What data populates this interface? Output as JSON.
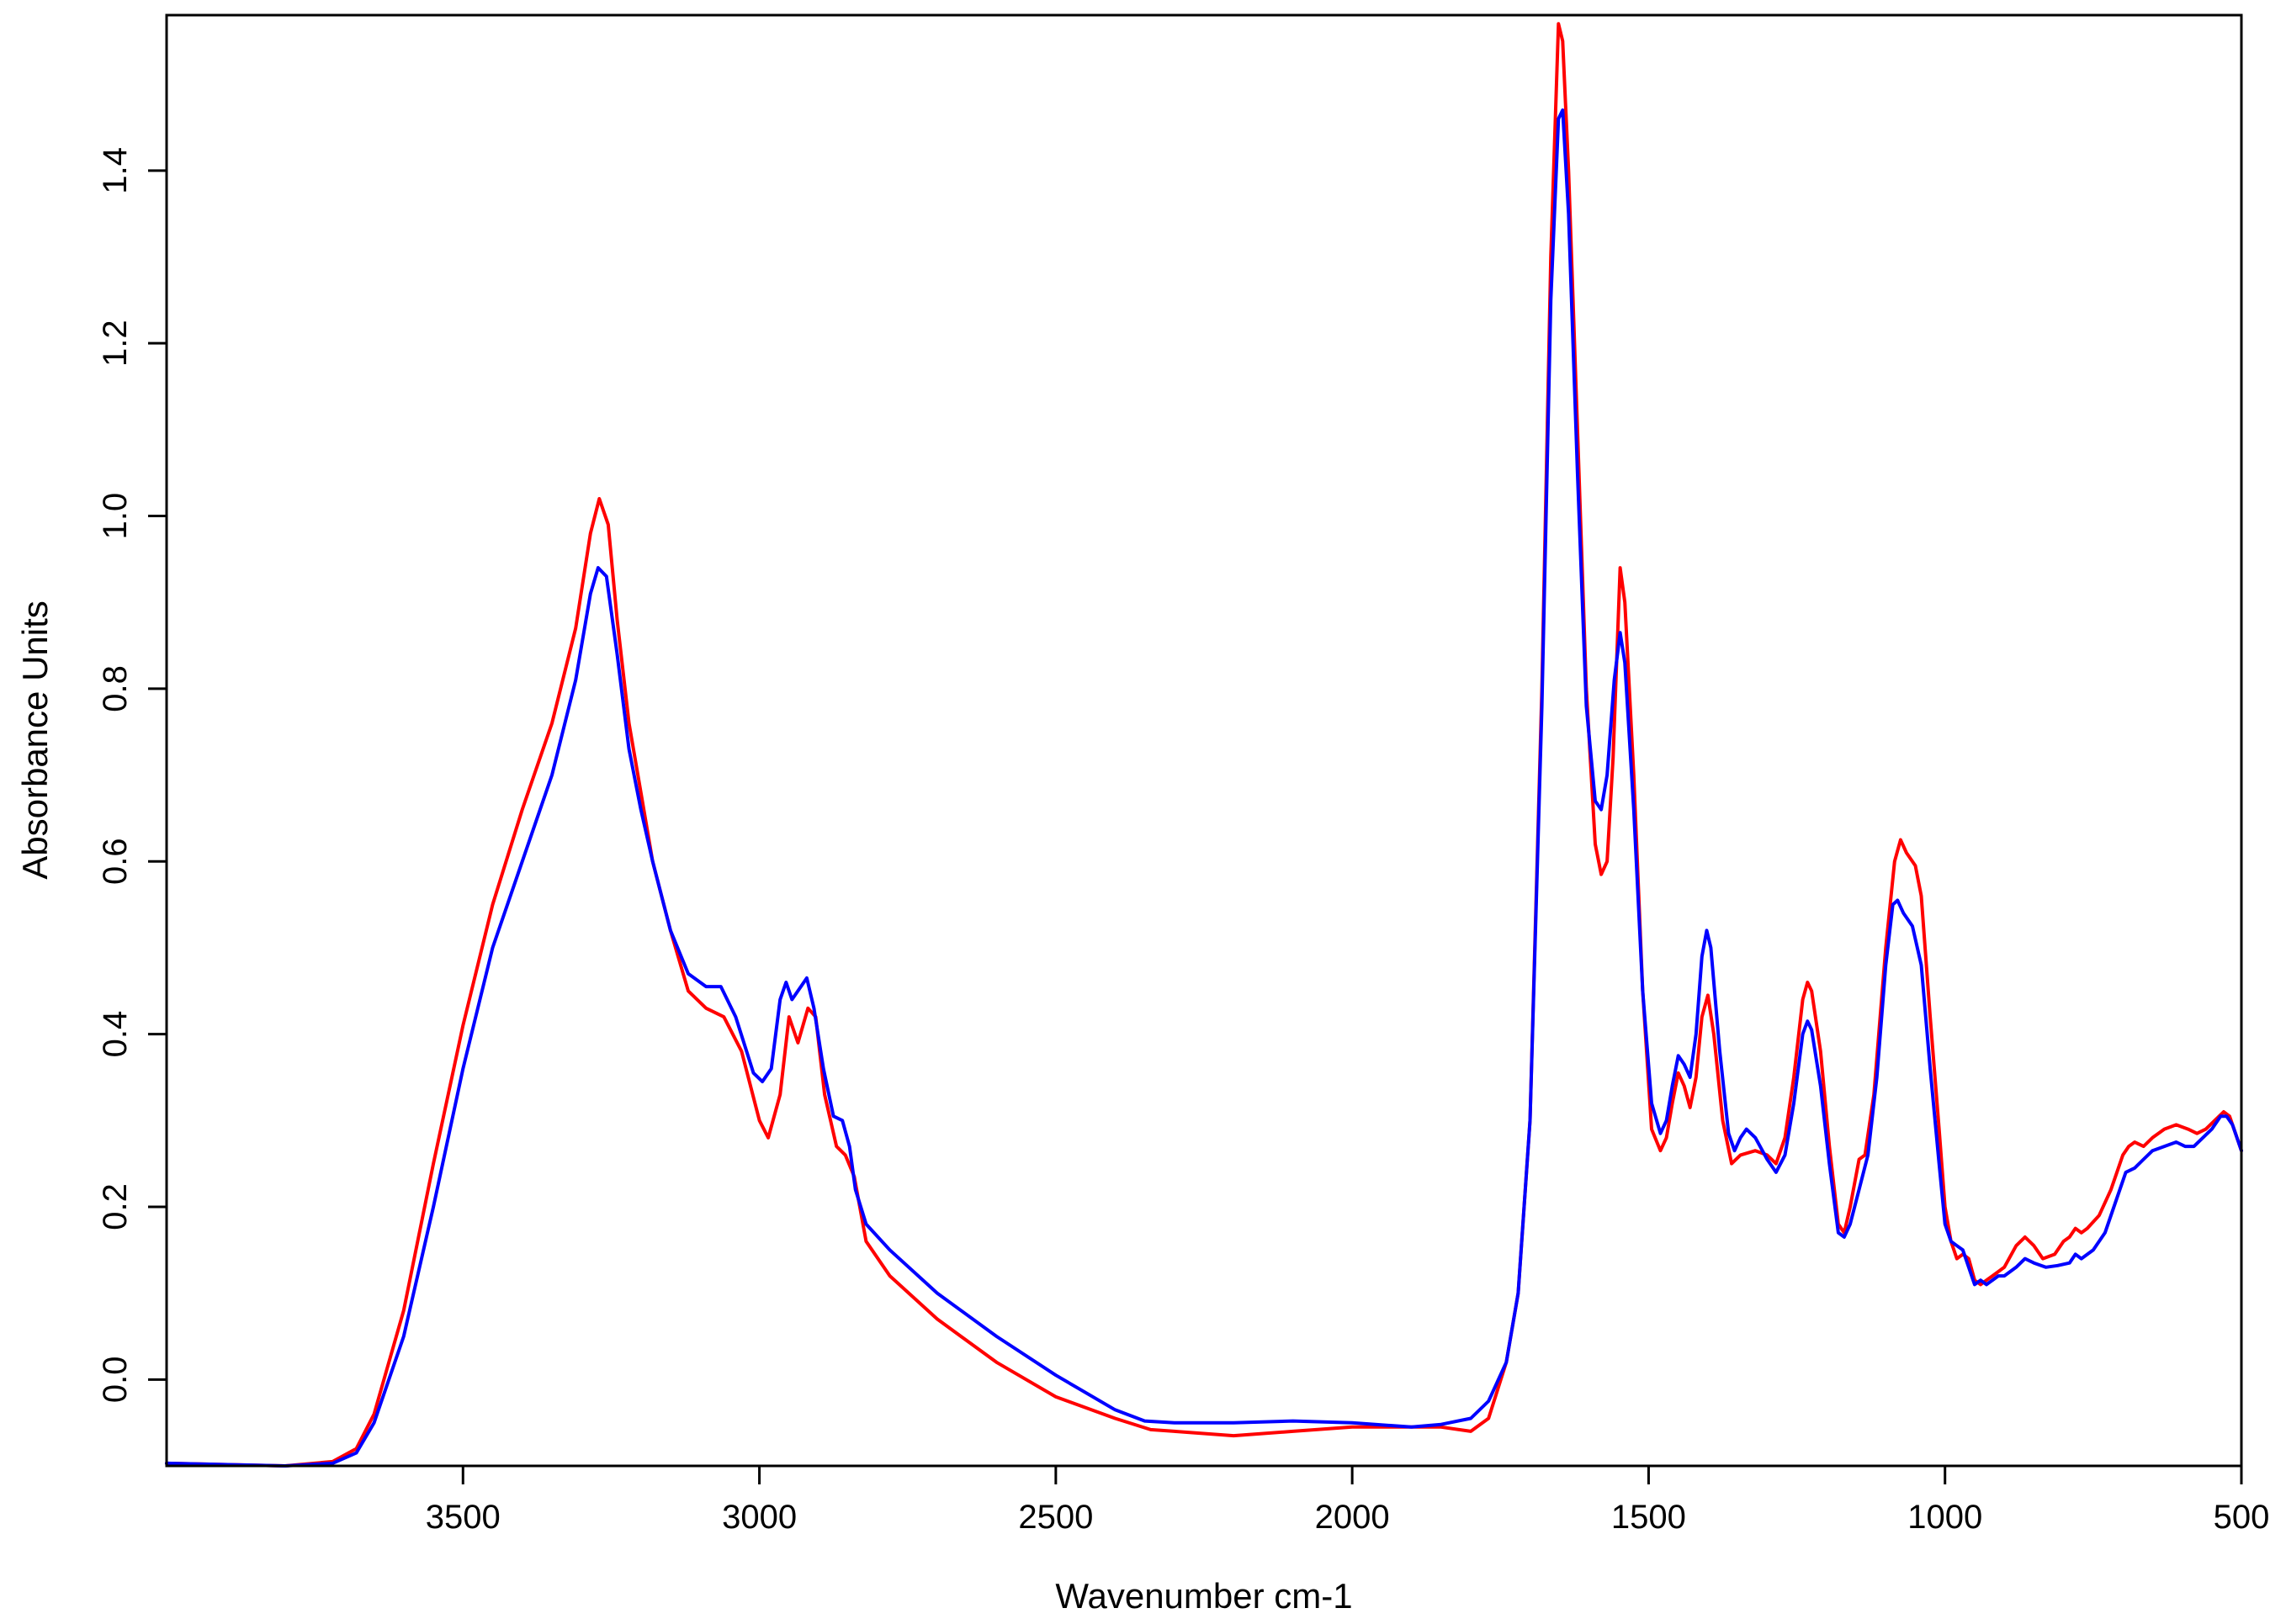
{
  "chart_data": {
    "type": "line",
    "title": "",
    "xlabel": "Wavenumber cm-1",
    "ylabel": "Absorbance Units",
    "xlim": [
      4000,
      500
    ],
    "ylim": [
      -0.1,
      1.58
    ],
    "x_reversed": true,
    "grid": false,
    "legend": "none",
    "x_ticks": [
      3500,
      3000,
      2500,
      2000,
      1500,
      1000,
      500
    ],
    "x_tick_labels": [
      "3500",
      "3000",
      "2500",
      "2000",
      "1500",
      "1000",
      "500"
    ],
    "y_ticks": [
      0.0,
      0.2,
      0.4,
      0.6,
      0.8,
      1.0,
      1.2,
      1.4
    ],
    "y_tick_labels": [
      "0.0",
      "0.2",
      "0.4",
      "0.6",
      "0.8",
      "1.0",
      "1.2",
      "1.4"
    ],
    "series": [
      {
        "color": "#ff0000",
        "points": [
          [
            4000,
            -0.097
          ],
          [
            3800,
            -0.1
          ],
          [
            3720,
            -0.095
          ],
          [
            3680,
            -0.08
          ],
          [
            3650,
            -0.04
          ],
          [
            3600,
            0.08
          ],
          [
            3550,
            0.25
          ],
          [
            3500,
            0.41
          ],
          [
            3450,
            0.55
          ],
          [
            3400,
            0.66
          ],
          [
            3350,
            0.76
          ],
          [
            3310,
            0.87
          ],
          [
            3285,
            0.98
          ],
          [
            3270,
            1.02
          ],
          [
            3255,
            0.99
          ],
          [
            3240,
            0.88
          ],
          [
            3220,
            0.76
          ],
          [
            3200,
            0.68
          ],
          [
            3180,
            0.6
          ],
          [
            3150,
            0.52
          ],
          [
            3120,
            0.45
          ],
          [
            3090,
            0.43
          ],
          [
            3060,
            0.42
          ],
          [
            3030,
            0.38
          ],
          [
            3000,
            0.3
          ],
          [
            2985,
            0.28
          ],
          [
            2965,
            0.33
          ],
          [
            2950,
            0.42
          ],
          [
            2935,
            0.39
          ],
          [
            2918,
            0.43
          ],
          [
            2905,
            0.42
          ],
          [
            2890,
            0.33
          ],
          [
            2870,
            0.27
          ],
          [
            2855,
            0.26
          ],
          [
            2840,
            0.235
          ],
          [
            2820,
            0.16
          ],
          [
            2780,
            0.12
          ],
          [
            2700,
            0.07
          ],
          [
            2600,
            0.02
          ],
          [
            2500,
            -0.02
          ],
          [
            2400,
            -0.045
          ],
          [
            2340,
            -0.058
          ],
          [
            2300,
            -0.06
          ],
          [
            2200,
            -0.065
          ],
          [
            2100,
            -0.06
          ],
          [
            2000,
            -0.055
          ],
          [
            1900,
            -0.055
          ],
          [
            1850,
            -0.055
          ],
          [
            1800,
            -0.06
          ],
          [
            1770,
            -0.045
          ],
          [
            1740,
            0.02
          ],
          [
            1720,
            0.1
          ],
          [
            1700,
            0.3
          ],
          [
            1680,
            0.8
          ],
          [
            1665,
            1.3
          ],
          [
            1652,
            1.57
          ],
          [
            1645,
            1.55
          ],
          [
            1635,
            1.4
          ],
          [
            1620,
            1.1
          ],
          [
            1605,
            0.8
          ],
          [
            1590,
            0.62
          ],
          [
            1580,
            0.585
          ],
          [
            1570,
            0.6
          ],
          [
            1560,
            0.72
          ],
          [
            1548,
            0.94
          ],
          [
            1540,
            0.9
          ],
          [
            1525,
            0.7
          ],
          [
            1510,
            0.45
          ],
          [
            1495,
            0.29
          ],
          [
            1480,
            0.265
          ],
          [
            1470,
            0.28
          ],
          [
            1460,
            0.32
          ],
          [
            1450,
            0.355
          ],
          [
            1440,
            0.34
          ],
          [
            1430,
            0.315
          ],
          [
            1420,
            0.35
          ],
          [
            1410,
            0.42
          ],
          [
            1400,
            0.445
          ],
          [
            1390,
            0.4
          ],
          [
            1375,
            0.3
          ],
          [
            1360,
            0.25
          ],
          [
            1345,
            0.26
          ],
          [
            1320,
            0.265
          ],
          [
            1300,
            0.26
          ],
          [
            1285,
            0.25
          ],
          [
            1270,
            0.28
          ],
          [
            1255,
            0.35
          ],
          [
            1240,
            0.44
          ],
          [
            1232,
            0.46
          ],
          [
            1225,
            0.45
          ],
          [
            1210,
            0.38
          ],
          [
            1195,
            0.27
          ],
          [
            1180,
            0.18
          ],
          [
            1170,
            0.17
          ],
          [
            1160,
            0.2
          ],
          [
            1145,
            0.255
          ],
          [
            1135,
            0.26
          ],
          [
            1120,
            0.33
          ],
          [
            1100,
            0.5
          ],
          [
            1085,
            0.6
          ],
          [
            1075,
            0.625
          ],
          [
            1065,
            0.61
          ],
          [
            1050,
            0.595
          ],
          [
            1040,
            0.56
          ],
          [
            1025,
            0.42
          ],
          [
            1010,
            0.29
          ],
          [
            1000,
            0.2
          ],
          [
            990,
            0.16
          ],
          [
            980,
            0.14
          ],
          [
            970,
            0.145
          ],
          [
            960,
            0.14
          ],
          [
            950,
            0.115
          ],
          [
            940,
            0.11
          ],
          [
            930,
            0.115
          ],
          [
            920,
            0.12
          ],
          [
            910,
            0.125
          ],
          [
            900,
            0.13
          ],
          [
            880,
            0.155
          ],
          [
            865,
            0.165
          ],
          [
            850,
            0.155
          ],
          [
            835,
            0.14
          ],
          [
            815,
            0.145
          ],
          [
            800,
            0.16
          ],
          [
            790,
            0.165
          ],
          [
            780,
            0.175
          ],
          [
            770,
            0.17
          ],
          [
            760,
            0.175
          ],
          [
            740,
            0.19
          ],
          [
            720,
            0.22
          ],
          [
            700,
            0.26
          ],
          [
            690,
            0.27
          ],
          [
            680,
            0.275
          ],
          [
            665,
            0.27
          ],
          [
            650,
            0.28
          ],
          [
            630,
            0.29
          ],
          [
            610,
            0.295
          ],
          [
            590,
            0.29
          ],
          [
            575,
            0.285
          ],
          [
            560,
            0.29
          ],
          [
            545,
            0.3
          ],
          [
            530,
            0.31
          ],
          [
            520,
            0.305
          ],
          [
            510,
            0.285
          ],
          [
            500,
            0.265
          ]
        ]
      },
      {
        "color": "#0000ff",
        "points": [
          [
            4000,
            -0.097
          ],
          [
            3800,
            -0.1
          ],
          [
            3720,
            -0.097
          ],
          [
            3680,
            -0.085
          ],
          [
            3650,
            -0.05
          ],
          [
            3600,
            0.05
          ],
          [
            3550,
            0.2
          ],
          [
            3500,
            0.36
          ],
          [
            3450,
            0.5
          ],
          [
            3400,
            0.6
          ],
          [
            3350,
            0.7
          ],
          [
            3310,
            0.81
          ],
          [
            3285,
            0.91
          ],
          [
            3272,
            0.94
          ],
          [
            3258,
            0.93
          ],
          [
            3240,
            0.84
          ],
          [
            3220,
            0.73
          ],
          [
            3200,
            0.66
          ],
          [
            3180,
            0.6
          ],
          [
            3150,
            0.52
          ],
          [
            3120,
            0.47
          ],
          [
            3090,
            0.455
          ],
          [
            3065,
            0.455
          ],
          [
            3040,
            0.42
          ],
          [
            3010,
            0.355
          ],
          [
            2995,
            0.345
          ],
          [
            2980,
            0.36
          ],
          [
            2965,
            0.44
          ],
          [
            2955,
            0.46
          ],
          [
            2945,
            0.44
          ],
          [
            2930,
            0.455
          ],
          [
            2920,
            0.465
          ],
          [
            2908,
            0.43
          ],
          [
            2892,
            0.36
          ],
          [
            2875,
            0.305
          ],
          [
            2860,
            0.3
          ],
          [
            2848,
            0.27
          ],
          [
            2838,
            0.22
          ],
          [
            2820,
            0.18
          ],
          [
            2780,
            0.15
          ],
          [
            2700,
            0.1
          ],
          [
            2600,
            0.05
          ],
          [
            2500,
            0.005
          ],
          [
            2400,
            -0.035
          ],
          [
            2350,
            -0.048
          ],
          [
            2300,
            -0.05
          ],
          [
            2200,
            -0.05
          ],
          [
            2100,
            -0.048
          ],
          [
            2000,
            -0.05
          ],
          [
            1900,
            -0.055
          ],
          [
            1850,
            -0.052
          ],
          [
            1800,
            -0.045
          ],
          [
            1770,
            -0.025
          ],
          [
            1740,
            0.02
          ],
          [
            1720,
            0.1
          ],
          [
            1700,
            0.3
          ],
          [
            1680,
            0.78
          ],
          [
            1665,
            1.25
          ],
          [
            1652,
            1.46
          ],
          [
            1645,
            1.47
          ],
          [
            1635,
            1.35
          ],
          [
            1620,
            1.05
          ],
          [
            1605,
            0.78
          ],
          [
            1590,
            0.67
          ],
          [
            1580,
            0.66
          ],
          [
            1570,
            0.7
          ],
          [
            1558,
            0.81
          ],
          [
            1548,
            0.865
          ],
          [
            1540,
            0.83
          ],
          [
            1525,
            0.66
          ],
          [
            1510,
            0.45
          ],
          [
            1495,
            0.32
          ],
          [
            1480,
            0.285
          ],
          [
            1470,
            0.3
          ],
          [
            1460,
            0.34
          ],
          [
            1450,
            0.375
          ],
          [
            1440,
            0.365
          ],
          [
            1430,
            0.35
          ],
          [
            1420,
            0.4
          ],
          [
            1410,
            0.49
          ],
          [
            1402,
            0.52
          ],
          [
            1395,
            0.5
          ],
          [
            1380,
            0.38
          ],
          [
            1365,
            0.285
          ],
          [
            1355,
            0.265
          ],
          [
            1345,
            0.28
          ],
          [
            1335,
            0.29
          ],
          [
            1320,
            0.28
          ],
          [
            1300,
            0.255
          ],
          [
            1285,
            0.24
          ],
          [
            1270,
            0.26
          ],
          [
            1255,
            0.32
          ],
          [
            1240,
            0.4
          ],
          [
            1232,
            0.415
          ],
          [
            1225,
            0.405
          ],
          [
            1210,
            0.34
          ],
          [
            1195,
            0.25
          ],
          [
            1180,
            0.17
          ],
          [
            1170,
            0.165
          ],
          [
            1160,
            0.18
          ],
          [
            1145,
            0.22
          ],
          [
            1130,
            0.26
          ],
          [
            1115,
            0.35
          ],
          [
            1100,
            0.48
          ],
          [
            1088,
            0.55
          ],
          [
            1080,
            0.555
          ],
          [
            1070,
            0.54
          ],
          [
            1055,
            0.525
          ],
          [
            1040,
            0.48
          ],
          [
            1025,
            0.36
          ],
          [
            1010,
            0.25
          ],
          [
            1000,
            0.18
          ],
          [
            990,
            0.16
          ],
          [
            980,
            0.155
          ],
          [
            970,
            0.15
          ],
          [
            960,
            0.13
          ],
          [
            950,
            0.11
          ],
          [
            940,
            0.115
          ],
          [
            930,
            0.11
          ],
          [
            920,
            0.115
          ],
          [
            910,
            0.12
          ],
          [
            900,
            0.12
          ],
          [
            880,
            0.13
          ],
          [
            865,
            0.14
          ],
          [
            850,
            0.135
          ],
          [
            830,
            0.13
          ],
          [
            810,
            0.132
          ],
          [
            790,
            0.135
          ],
          [
            780,
            0.145
          ],
          [
            770,
            0.14
          ],
          [
            750,
            0.15
          ],
          [
            730,
            0.17
          ],
          [
            710,
            0.21
          ],
          [
            695,
            0.24
          ],
          [
            680,
            0.245
          ],
          [
            665,
            0.255
          ],
          [
            650,
            0.265
          ],
          [
            630,
            0.27
          ],
          [
            610,
            0.275
          ],
          [
            595,
            0.27
          ],
          [
            580,
            0.27
          ],
          [
            565,
            0.28
          ],
          [
            550,
            0.29
          ],
          [
            535,
            0.305
          ],
          [
            525,
            0.305
          ],
          [
            515,
            0.295
          ],
          [
            505,
            0.275
          ],
          [
            500,
            0.265
          ]
        ]
      }
    ]
  }
}
